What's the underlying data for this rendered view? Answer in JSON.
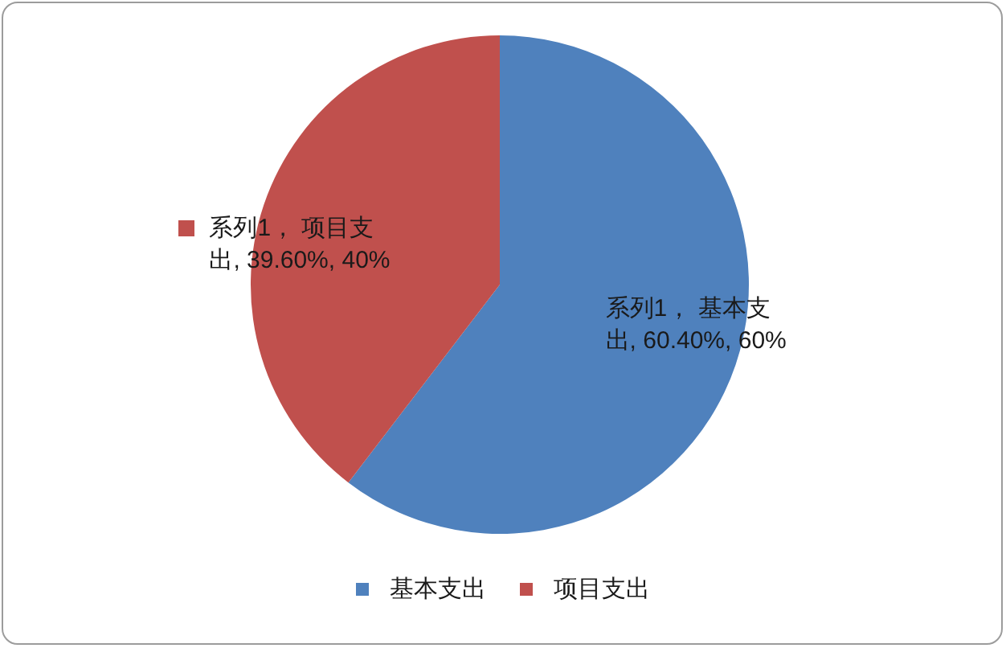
{
  "chart_data": {
    "type": "pie",
    "categories": [
      "基本支出",
      "项目支出"
    ],
    "values": [
      60.4,
      39.6
    ],
    "colors": [
      "#4f81bd",
      "#c0504d"
    ],
    "value_labels": [
      "系列1， 基本支出, 60.40%, 60%",
      "系列1， 项目支出, 39.60%, 40%"
    ],
    "legend": "bottom"
  }
}
